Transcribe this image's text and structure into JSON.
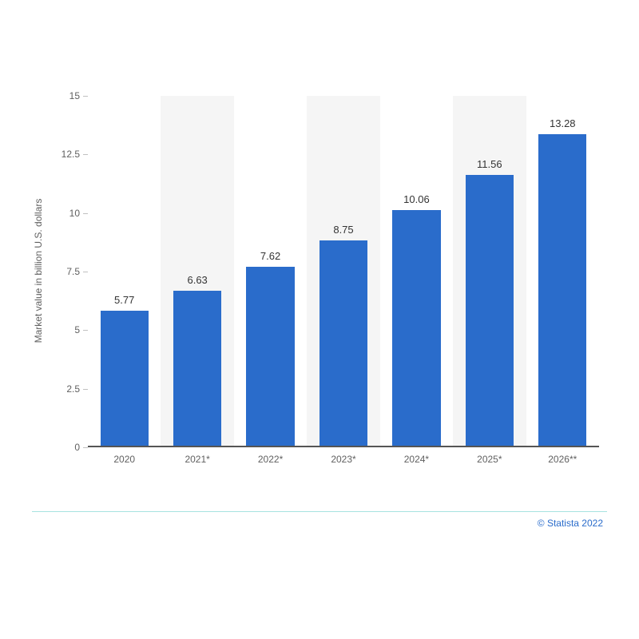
{
  "chart": {
    "type": "bar",
    "y_axis_label": "Market value in billion U.S. dollars",
    "categories": [
      "2020",
      "2021*",
      "2022*",
      "2023*",
      "2024*",
      "2025*",
      "2026**"
    ],
    "values": [
      5.77,
      6.63,
      7.62,
      8.75,
      10.06,
      11.56,
      13.28
    ],
    "value_labels": [
      "5.77",
      "6.63",
      "7.62",
      "8.75",
      "10.06",
      "11.56",
      "13.28"
    ],
    "bar_color": "#2a6ccb",
    "alt_band_color": "#f5f5f5",
    "background_color": "#ffffff",
    "axis_label_color": "#606060",
    "value_label_color": "#333333",
    "axis_line_color": "#555555",
    "tick_color": "#c0c0c0",
    "ylim": [
      0,
      15
    ],
    "ytick_step": 2.5,
    "ytick_labels": [
      "0",
      "2.5",
      "5",
      "7.5",
      "10",
      "12.5",
      "15"
    ],
    "bar_width_ratio": 0.66,
    "label_fontsize": 12,
    "value_fontsize": 13
  },
  "footer": {
    "attribution": "© Statista 2022",
    "attribution_color": "#2a6ccb",
    "line_color": "#a7e3e0"
  }
}
